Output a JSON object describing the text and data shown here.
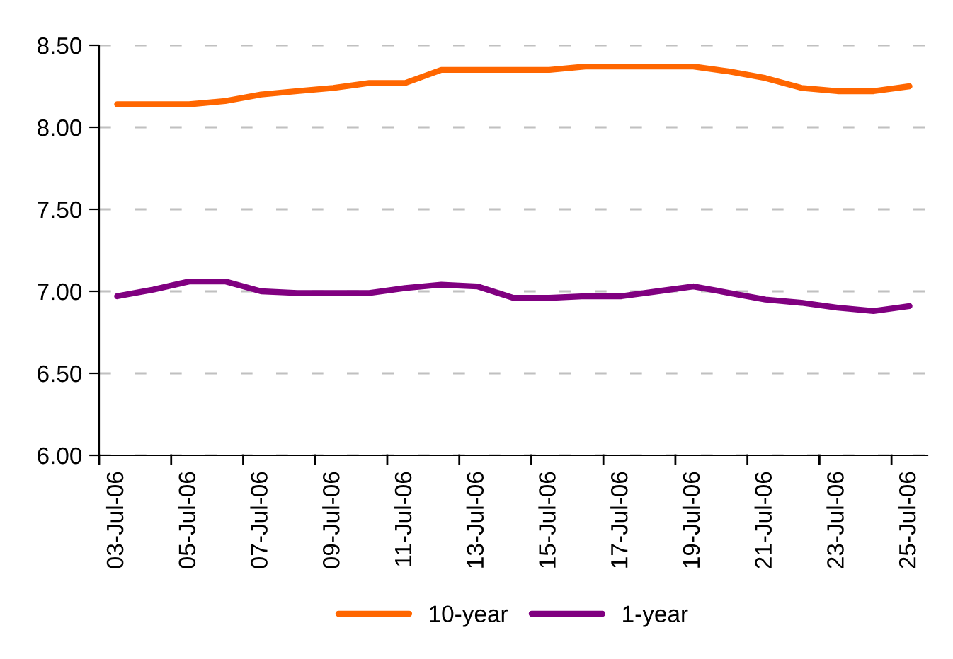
{
  "chart_data": {
    "type": "line",
    "categories": [
      "03-Jul-06",
      null,
      "05-Jul-06",
      null,
      "07-Jul-06",
      null,
      "09-Jul-06",
      null,
      "11-Jul-06",
      null,
      "13-Jul-06",
      null,
      "15-Jul-06",
      null,
      "17-Jul-06",
      null,
      "19-Jul-06",
      null,
      "21-Jul-06",
      null,
      "23-Jul-06",
      null,
      "25-Jul-06"
    ],
    "series": [
      {
        "name": "10-year",
        "color": "#ff6600",
        "values": [
          8.14,
          8.14,
          8.14,
          8.16,
          8.2,
          8.22,
          8.24,
          8.27,
          8.27,
          8.35,
          8.35,
          8.35,
          8.35,
          8.37,
          8.37,
          8.37,
          8.37,
          8.34,
          8.3,
          8.24,
          8.22,
          8.22,
          8.25
        ]
      },
      {
        "name": "1-year",
        "color": "#800080",
        "values": [
          6.97,
          7.01,
          7.06,
          7.06,
          7.0,
          6.99,
          6.99,
          6.99,
          7.02,
          7.04,
          7.03,
          6.96,
          6.96,
          6.97,
          6.97,
          7.0,
          7.03,
          6.99,
          6.95,
          6.93,
          6.9,
          6.88,
          6.91
        ]
      }
    ],
    "ylim": [
      6,
      8.5
    ],
    "yticks": [
      {
        "value": 6,
        "label": "6.00"
      },
      {
        "value": 6.5,
        "label": "6.50"
      },
      {
        "value": 7,
        "label": "7.00"
      },
      {
        "value": 7.5,
        "label": "7.50"
      },
      {
        "value": 8,
        "label": "8.00"
      },
      {
        "value": 8.5,
        "label": "8.50"
      }
    ],
    "grid": "y",
    "legend": "bottom",
    "marker": "none",
    "line_style": "solid"
  }
}
